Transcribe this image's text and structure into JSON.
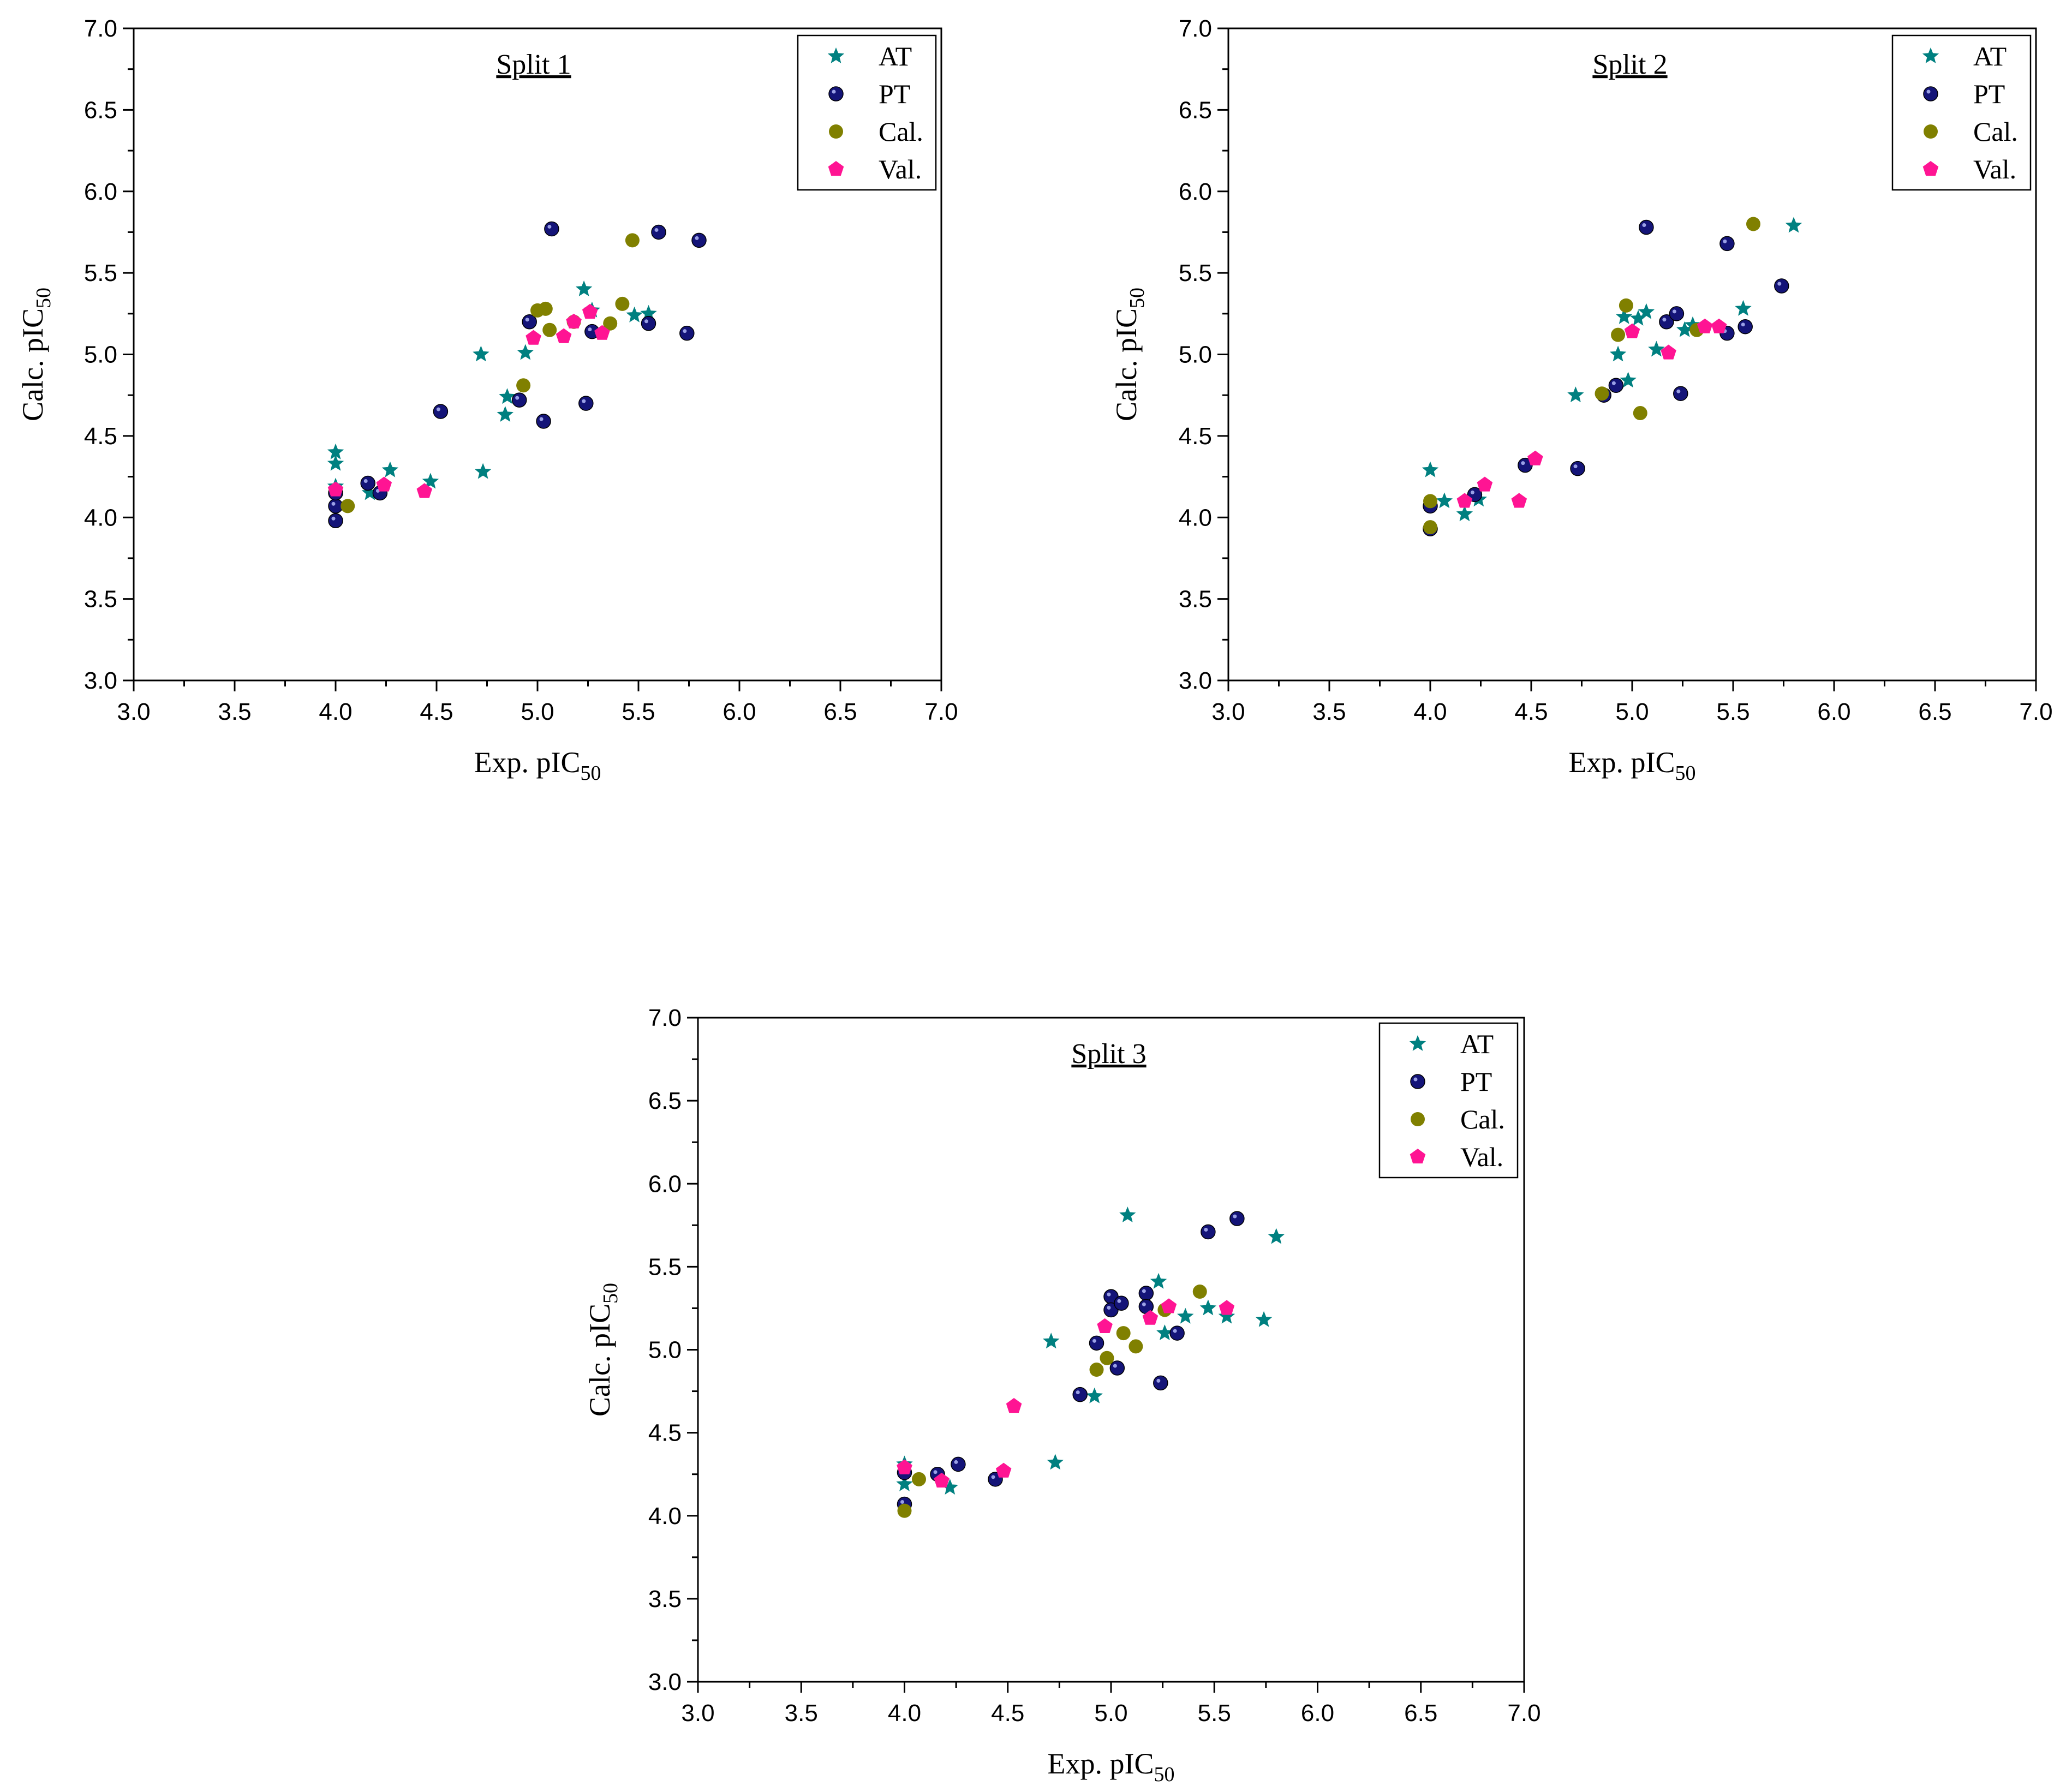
{
  "colors": {
    "AT": "#008080",
    "PT": "#141478",
    "Cal.": "#808000",
    "Val.": "#ff1493"
  },
  "axis_labels": {
    "x_main": "Exp. pIC",
    "x_sub": "50",
    "y_main": "Calc. pIC",
    "y_sub": "50"
  },
  "chart_data": [
    {
      "type": "scatter",
      "title": "Split 1",
      "xlabel": "Exp. pIC50",
      "ylabel": "Calc. pIC50",
      "xlim": [
        3.0,
        7.0
      ],
      "ylim": [
        3.0,
        7.0
      ],
      "xticks": [
        "3.0",
        "3.5",
        "4.0",
        "4.5",
        "5.0",
        "5.5",
        "6.0",
        "6.5",
        "7.0"
      ],
      "yticks": [
        "3.0",
        "3.5",
        "4.0",
        "4.5",
        "5.0",
        "5.5",
        "6.0",
        "6.5",
        "7.0"
      ],
      "legend_position": "top-right",
      "series": [
        {
          "name": "AT",
          "marker": "star",
          "points": [
            [
              4.0,
              4.4
            ],
            [
              4.0,
              4.33
            ],
            [
              4.0,
              4.19
            ],
            [
              4.17,
              4.15
            ],
            [
              4.27,
              4.29
            ],
            [
              4.47,
              4.22
            ],
            [
              4.72,
              5.0
            ],
            [
              4.73,
              4.28
            ],
            [
              4.84,
              4.63
            ],
            [
              4.85,
              4.74
            ],
            [
              4.94,
              5.01
            ],
            [
              5.23,
              5.4
            ],
            [
              5.27,
              5.27
            ],
            [
              5.48,
              5.24
            ],
            [
              5.55,
              5.25
            ]
          ]
        },
        {
          "name": "PT",
          "marker": "sphere",
          "points": [
            [
              4.0,
              3.98
            ],
            [
              4.0,
              4.07
            ],
            [
              4.0,
              4.15
            ],
            [
              4.16,
              4.21
            ],
            [
              4.22,
              4.15
            ],
            [
              4.52,
              4.65
            ],
            [
              4.91,
              4.72
            ],
            [
              4.96,
              5.2
            ],
            [
              5.03,
              4.59
            ],
            [
              5.07,
              5.77
            ],
            [
              5.24,
              4.7
            ],
            [
              5.27,
              5.14
            ],
            [
              5.55,
              5.19
            ],
            [
              5.6,
              5.75
            ],
            [
              5.74,
              5.13
            ],
            [
              5.8,
              5.7
            ]
          ]
        },
        {
          "name": "Cal.",
          "marker": "circle",
          "points": [
            [
              4.06,
              4.07
            ],
            [
              4.93,
              4.81
            ],
            [
              5.0,
              5.27
            ],
            [
              5.04,
              5.28
            ],
            [
              5.06,
              5.15
            ],
            [
              5.18,
              5.2
            ],
            [
              5.36,
              5.19
            ],
            [
              5.42,
              5.31
            ],
            [
              5.47,
              5.7
            ]
          ]
        },
        {
          "name": "Val.",
          "marker": "pentagon",
          "points": [
            [
              4.0,
              4.17
            ],
            [
              4.24,
              4.2
            ],
            [
              4.44,
              4.16
            ],
            [
              4.98,
              5.1
            ],
            [
              5.13,
              5.11
            ],
            [
              5.18,
              5.2
            ],
            [
              5.26,
              5.26
            ],
            [
              5.32,
              5.13
            ]
          ]
        }
      ]
    },
    {
      "type": "scatter",
      "title": "Split 2",
      "xlabel": "Exp. pIC50",
      "ylabel": "Calc. pIC50",
      "xlim": [
        3.0,
        7.0
      ],
      "ylim": [
        3.0,
        7.0
      ],
      "xticks": [
        "3.0",
        "3.5",
        "4.0",
        "4.5",
        "5.0",
        "5.5",
        "6.0",
        "6.5",
        "7.0"
      ],
      "yticks": [
        "3.0",
        "3.5",
        "4.0",
        "4.5",
        "5.0",
        "5.5",
        "6.0",
        "6.5",
        "7.0"
      ],
      "legend_position": "top-right",
      "series": [
        {
          "name": "AT",
          "marker": "star",
          "points": [
            [
              4.0,
              4.29
            ],
            [
              4.07,
              4.1
            ],
            [
              4.17,
              4.02
            ],
            [
              4.24,
              4.11
            ],
            [
              4.72,
              4.75
            ],
            [
              4.93,
              5.0
            ],
            [
              4.96,
              5.23
            ],
            [
              4.98,
              4.84
            ],
            [
              5.03,
              5.22
            ],
            [
              5.07,
              5.26
            ],
            [
              5.12,
              5.03
            ],
            [
              5.26,
              5.15
            ],
            [
              5.3,
              5.18
            ],
            [
              5.55,
              5.28
            ],
            [
              5.8,
              5.79
            ]
          ]
        },
        {
          "name": "PT",
          "marker": "sphere",
          "points": [
            [
              4.0,
              3.93
            ],
            [
              4.0,
              4.07
            ],
            [
              4.22,
              4.14
            ],
            [
              4.47,
              4.32
            ],
            [
              4.73,
              4.3
            ],
            [
              4.86,
              4.75
            ],
            [
              4.92,
              4.81
            ],
            [
              5.07,
              5.78
            ],
            [
              5.17,
              5.2
            ],
            [
              5.22,
              5.25
            ],
            [
              5.24,
              4.76
            ],
            [
              5.47,
              5.13
            ],
            [
              5.47,
              5.68
            ],
            [
              5.56,
              5.17
            ],
            [
              5.74,
              5.42
            ]
          ]
        },
        {
          "name": "Cal.",
          "marker": "circle",
          "points": [
            [
              4.0,
              3.94
            ],
            [
              4.0,
              4.1
            ],
            [
              4.85,
              4.76
            ],
            [
              4.93,
              5.12
            ],
            [
              4.97,
              5.3
            ],
            [
              5.04,
              4.64
            ],
            [
              5.32,
              5.15
            ],
            [
              5.6,
              5.8
            ]
          ]
        },
        {
          "name": "Val.",
          "marker": "pentagon",
          "points": [
            [
              4.17,
              4.1
            ],
            [
              4.27,
              4.2
            ],
            [
              4.44,
              4.1
            ],
            [
              4.52,
              4.36
            ],
            [
              5.0,
              5.14
            ],
            [
              5.18,
              5.01
            ],
            [
              5.36,
              5.17
            ],
            [
              5.43,
              5.17
            ]
          ]
        }
      ]
    },
    {
      "type": "scatter",
      "title": "Split 3",
      "xlabel": "Exp. pIC50",
      "ylabel": "Calc. pIC50",
      "xlim": [
        3.0,
        7.0
      ],
      "ylim": [
        3.0,
        7.0
      ],
      "xticks": [
        "3.0",
        "3.5",
        "4.0",
        "4.5",
        "5.0",
        "5.5",
        "6.0",
        "6.5",
        "7.0"
      ],
      "yticks": [
        "3.0",
        "3.5",
        "4.0",
        "4.5",
        "5.0",
        "5.5",
        "6.0",
        "6.5",
        "7.0"
      ],
      "legend_position": "top-right",
      "series": [
        {
          "name": "AT",
          "marker": "star",
          "points": [
            [
              4.0,
              4.31
            ],
            [
              4.0,
              4.19
            ],
            [
              4.22,
              4.17
            ],
            [
              4.71,
              5.05
            ],
            [
              4.73,
              4.32
            ],
            [
              4.92,
              4.72
            ],
            [
              5.08,
              5.81
            ],
            [
              5.23,
              5.41
            ],
            [
              5.26,
              5.1
            ],
            [
              5.36,
              5.2
            ],
            [
              5.47,
              5.25
            ],
            [
              5.56,
              5.2
            ],
            [
              5.74,
              5.18
            ],
            [
              5.8,
              5.68
            ]
          ]
        },
        {
          "name": "PT",
          "marker": "sphere",
          "points": [
            [
              4.0,
              4.07
            ],
            [
              4.0,
              4.26
            ],
            [
              4.16,
              4.25
            ],
            [
              4.26,
              4.31
            ],
            [
              4.44,
              4.22
            ],
            [
              4.85,
              4.73
            ],
            [
              4.93,
              5.04
            ],
            [
              5.0,
              5.32
            ],
            [
              5.0,
              5.24
            ],
            [
              5.03,
              4.89
            ],
            [
              5.05,
              5.28
            ],
            [
              5.17,
              5.34
            ],
            [
              5.17,
              5.26
            ],
            [
              5.24,
              4.8
            ],
            [
              5.32,
              5.1
            ],
            [
              5.47,
              5.71
            ],
            [
              5.61,
              5.79
            ]
          ]
        },
        {
          "name": "Cal.",
          "marker": "circle",
          "points": [
            [
              4.0,
              4.03
            ],
            [
              4.07,
              4.22
            ],
            [
              4.93,
              4.88
            ],
            [
              4.98,
              4.95
            ],
            [
              5.06,
              5.1
            ],
            [
              5.12,
              5.02
            ],
            [
              5.26,
              5.24
            ],
            [
              5.43,
              5.35
            ]
          ]
        },
        {
          "name": "Val.",
          "marker": "pentagon",
          "points": [
            [
              4.0,
              4.29
            ],
            [
              4.18,
              4.21
            ],
            [
              4.48,
              4.27
            ],
            [
              4.53,
              4.66
            ],
            [
              4.97,
              5.14
            ],
            [
              5.19,
              5.19
            ],
            [
              5.28,
              5.26
            ],
            [
              5.56,
              5.25
            ]
          ]
        }
      ]
    }
  ]
}
